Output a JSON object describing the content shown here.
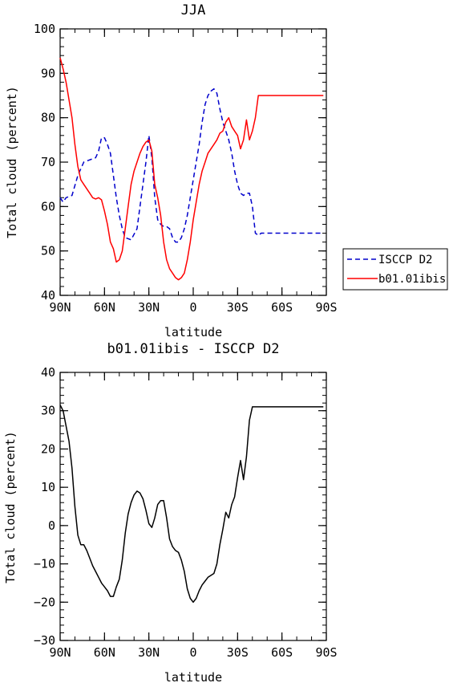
{
  "chart_data": [
    {
      "type": "line",
      "title": "JJA",
      "xlabel": "latitude",
      "ylabel": "Total cloud (percent)",
      "xlim": [
        0,
        180
      ],
      "ylim": [
        40,
        100
      ],
      "x_ticks": [
        {
          "value": 0,
          "label": "90N"
        },
        {
          "value": 30,
          "label": "60N"
        },
        {
          "value": 60,
          "label": "30N"
        },
        {
          "value": 90,
          "label": "0"
        },
        {
          "value": 120,
          "label": "30S"
        },
        {
          "value": 150,
          "label": "60S"
        },
        {
          "value": 180,
          "label": "90S"
        }
      ],
      "y_ticks": [
        40,
        50,
        60,
        70,
        80,
        90,
        100
      ],
      "legend": {
        "position": "right"
      },
      "series": [
        {
          "name": "ISCCP D2",
          "color": "#0000cc",
          "dash": "dashed",
          "x": [
            0,
            2,
            4,
            8,
            12,
            16,
            20,
            24,
            26,
            28,
            30,
            32,
            34,
            36,
            38,
            40,
            42,
            44,
            48,
            52,
            54,
            56,
            58,
            60,
            62,
            64,
            66,
            68,
            70,
            72,
            74,
            76,
            78,
            80,
            82,
            84,
            86,
            88,
            90,
            92,
            94,
            96,
            98,
            100,
            102,
            104,
            106,
            108,
            110,
            112,
            114,
            116,
            118,
            120,
            122,
            124,
            126,
            128,
            130,
            132,
            134,
            136,
            138,
            140,
            142,
            144,
            146,
            148,
            150,
            152,
            154,
            156,
            158,
            160,
            162,
            164,
            166,
            168,
            170,
            172,
            174,
            176,
            178
          ],
          "y": [
            62,
            61,
            62,
            62.5,
            67,
            70,
            70.5,
            71,
            72.5,
            75.5,
            75.5,
            74,
            72,
            67,
            62,
            58,
            55,
            53,
            52.5,
            55,
            60,
            65,
            70,
            76,
            71,
            62,
            57,
            56,
            55.5,
            55.5,
            55,
            53,
            52,
            52,
            53,
            55,
            58,
            62,
            66,
            70,
            74,
            79,
            83,
            85,
            86,
            86.5,
            85.5,
            82,
            79,
            77,
            75,
            72,
            68,
            65,
            63,
            62.5,
            63,
            63,
            60,
            54,
            53.5,
            54,
            54,
            54,
            54,
            54,
            54,
            54,
            54,
            54,
            54,
            54,
            54,
            54,
            54,
            54,
            54,
            54,
            54,
            54,
            54,
            54,
            54
          ]
        },
        {
          "name": "b01.01ibis",
          "color": "#ff0000",
          "dash": "solid",
          "x": [
            0,
            2,
            4,
            6,
            8,
            10,
            12,
            14,
            16,
            18,
            20,
            22,
            24,
            26,
            28,
            30,
            32,
            34,
            36,
            38,
            40,
            42,
            44,
            46,
            48,
            50,
            52,
            54,
            56,
            58,
            60,
            62,
            64,
            66,
            68,
            70,
            72,
            74,
            76,
            78,
            80,
            82,
            84,
            86,
            88,
            90,
            92,
            94,
            96,
            98,
            100,
            102,
            104,
            106,
            108,
            110,
            112,
            114,
            116,
            118,
            120,
            122,
            124,
            126,
            128,
            130,
            132,
            134,
            136,
            138,
            140,
            142,
            144,
            146,
            148,
            150,
            152,
            154,
            156,
            158,
            160,
            162,
            164,
            166,
            168,
            170,
            172,
            174,
            176,
            178
          ],
          "y": [
            93.5,
            91,
            88,
            84,
            80,
            74,
            69,
            66,
            65,
            64,
            63,
            62,
            61.7,
            62,
            61.5,
            59,
            56,
            52,
            50.5,
            47.5,
            48,
            50,
            55,
            60,
            65,
            68,
            70,
            72,
            73.5,
            74.5,
            75,
            72.5,
            65,
            62,
            58,
            52,
            48,
            46,
            45,
            44,
            43.5,
            44,
            45,
            48,
            52,
            57,
            61,
            65,
            68,
            70,
            72,
            73,
            74,
            75,
            76.5,
            77,
            79,
            80,
            78,
            77,
            76,
            73,
            75,
            79.5,
            75,
            77,
            80,
            85,
            85,
            85,
            85,
            85,
            85,
            85,
            85,
            85,
            85,
            85,
            85,
            85,
            85,
            85,
            85,
            85,
            85,
            85,
            85,
            85,
            85,
            85
          ]
        }
      ]
    },
    {
      "type": "line",
      "title": "b01.01ibis - ISCCP D2",
      "xlabel": "latitude",
      "ylabel": "Total cloud (percent)",
      "xlim": [
        0,
        180
      ],
      "ylim": [
        -30,
        40
      ],
      "x_ticks": [
        {
          "value": 0,
          "label": "90N"
        },
        {
          "value": 30,
          "label": "60N"
        },
        {
          "value": 60,
          "label": "30N"
        },
        {
          "value": 90,
          "label": "0"
        },
        {
          "value": 120,
          "label": "30S"
        },
        {
          "value": 150,
          "label": "60S"
        },
        {
          "value": 180,
          "label": "90S"
        }
      ],
      "y_ticks": [
        -30,
        -20,
        -10,
        0,
        10,
        20,
        30,
        40
      ],
      "series": [
        {
          "color": "#000000",
          "dash": "solid",
          "x": [
            0,
            2,
            4,
            6,
            8,
            10,
            12,
            14,
            16,
            18,
            20,
            22,
            24,
            26,
            28,
            30,
            32,
            34,
            36,
            38,
            40,
            42,
            44,
            46,
            48,
            50,
            52,
            54,
            56,
            58,
            60,
            62,
            64,
            66,
            68,
            70,
            72,
            74,
            76,
            78,
            80,
            82,
            84,
            86,
            88,
            90,
            92,
            94,
            96,
            98,
            100,
            102,
            104,
            106,
            108,
            110,
            112,
            114,
            116,
            118,
            120,
            122,
            124,
            126,
            128,
            130,
            132,
            134,
            136,
            138,
            140,
            142,
            144,
            146,
            148,
            150,
            152,
            154,
            156,
            158,
            160,
            162,
            164,
            166,
            168,
            170,
            172,
            174,
            176,
            178
          ],
          "y": [
            31.5,
            30,
            26,
            22,
            15,
            5,
            -2.5,
            -5,
            -5,
            -6.5,
            -8.5,
            -10.5,
            -12,
            -13.5,
            -15,
            -16,
            -17,
            -18.5,
            -18.5,
            -16,
            -14,
            -9,
            -2,
            3,
            6,
            8,
            9,
            8.5,
            7,
            4,
            0.5,
            -0.5,
            2,
            5.5,
            6.5,
            6.5,
            2,
            -3.5,
            -5.5,
            -6.5,
            -7,
            -9,
            -12,
            -16.5,
            -19,
            -20,
            -19,
            -17,
            -15.5,
            -14.5,
            -13.5,
            -13,
            -12.5,
            -10,
            -5,
            -1,
            3.5,
            2,
            5.5,
            7.5,
            12.5,
            17,
            12,
            18,
            27.5,
            31,
            31,
            31,
            31,
            31,
            31,
            31,
            31,
            31,
            31,
            31,
            31,
            31,
            31,
            31,
            31,
            31,
            31,
            31,
            31,
            31,
            31,
            31,
            31,
            31
          ]
        }
      ]
    }
  ]
}
